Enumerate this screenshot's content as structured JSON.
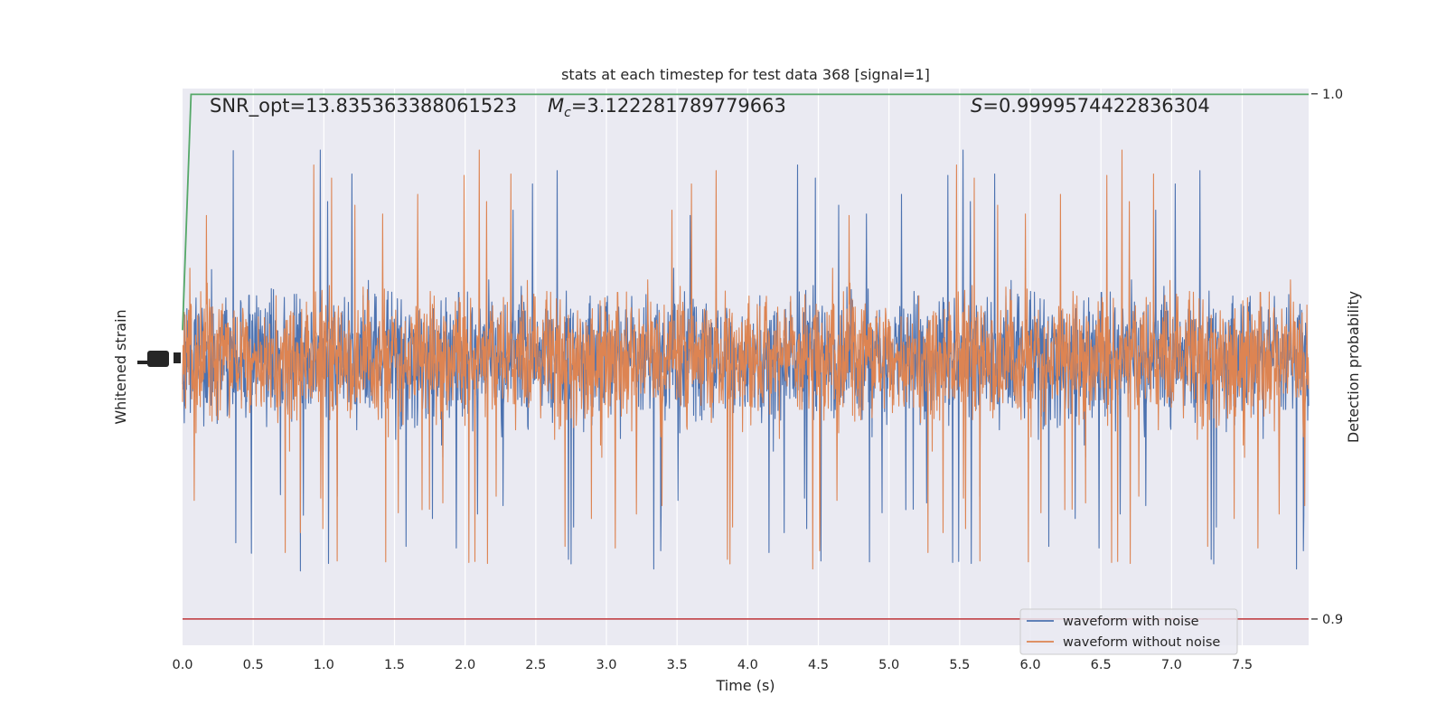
{
  "chart_data": {
    "type": "line",
    "title": "stats at each timestep for test data 368 [signal=1]",
    "xlabel": "Time (s)",
    "ylabel_left": "Whitened strain",
    "ylabel_right": "Detection probability",
    "xlim": [
      0.0,
      7.97
    ],
    "x_ticks": [
      "0.0",
      "0.5",
      "1.0",
      "1.5",
      "2.0",
      "2.5",
      "3.0",
      "3.5",
      "4.0",
      "4.5",
      "5.0",
      "5.5",
      "6.0",
      "6.5",
      "7.0",
      "7.5"
    ],
    "y_right_lim": [
      0.895,
      1.001
    ],
    "y_right_ticks": [
      "0.9",
      "1.0"
    ],
    "grid": true,
    "legend_position": "lower-right",
    "annotations": {
      "snr": "SNR_opt=13.835363388061523",
      "mc_symbol": "M",
      "mc_sub": "c",
      "mc_value": "=3.122281789779663",
      "s_symbol": "S",
      "s_value": "=0.9999574422836304"
    },
    "series": [
      {
        "name": "waveform with noise",
        "color": "#4c72b0",
        "axis": "left",
        "kind": "noise-trace",
        "amplitude": "relative"
      },
      {
        "name": "waveform without noise",
        "color": "#dd8452",
        "axis": "left",
        "kind": "noise-trace",
        "amplitude": "relative"
      },
      {
        "name": "",
        "color": "#55a868",
        "axis": "right",
        "x": [
          0.0,
          0.06,
          7.97
        ],
        "y": [
          0.955,
          0.9999,
          0.9999
        ]
      },
      {
        "name": "",
        "color": "#c44e52",
        "axis": "right",
        "x": [
          0.0,
          7.97
        ],
        "y": [
          0.9,
          0.9
        ]
      }
    ]
  }
}
